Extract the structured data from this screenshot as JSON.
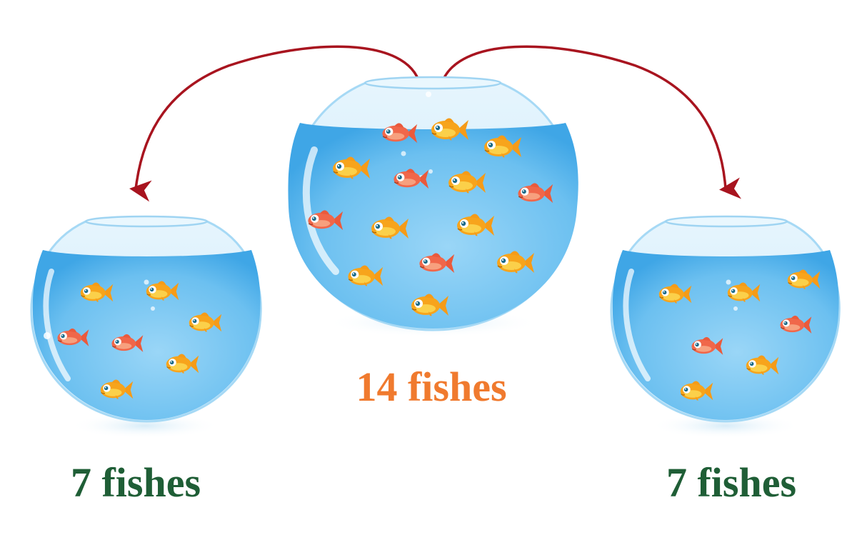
{
  "captions": {
    "center": "14 fishes",
    "left": "7 fishes",
    "right": "7 fishes"
  },
  "colors": {
    "center_caption": "#f07a2e",
    "side_caption": "#1f5e36",
    "arrow": "#a8141f",
    "water_light": "#cfeafb",
    "water_mid": "#8fcff5",
    "water_deep": "#4fb0ea",
    "fish_gold": "#f7a41c",
    "fish_red": "#f0674a"
  },
  "icons": {
    "bowl": "fishbowl-icon",
    "fish": "goldfish-icon",
    "arrow": "curved-arrow-icon"
  },
  "bowls": {
    "center": {
      "fish_count": 14
    },
    "left": {
      "fish_count": 7
    },
    "right": {
      "fish_count": 7
    }
  }
}
